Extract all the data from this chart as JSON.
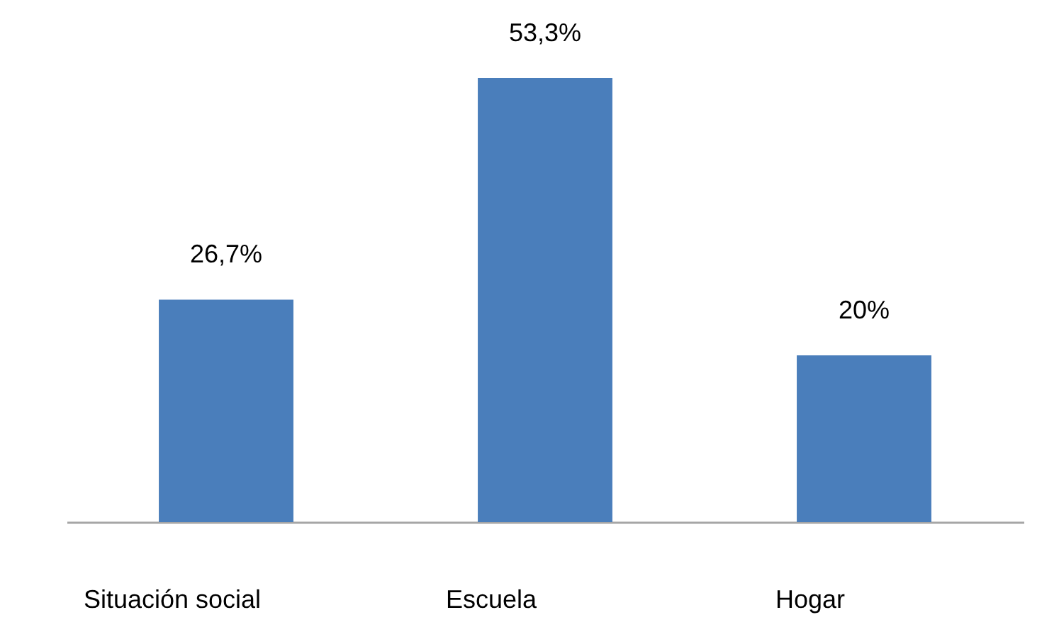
{
  "chart_data": {
    "type": "bar",
    "categories": [
      "Situación social",
      "Escuela",
      "Hogar"
    ],
    "values": [
      26.7,
      53.3,
      20
    ],
    "color": "#4a7ebb",
    "value_labels": [
      "26,7%",
      "53,3%",
      "20%"
    ]
  }
}
